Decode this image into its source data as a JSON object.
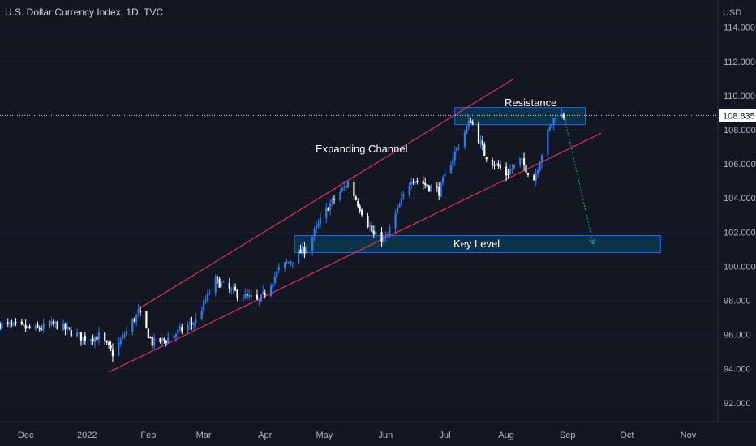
{
  "title": "U.S. Dollar Currency Index, 1D, TVC",
  "colors": {
    "background": "#131722",
    "up": "#3179f5",
    "down": "#ffffff",
    "channel": "#e0315a",
    "zone_fill": "#0c3a50",
    "zone_border": "#2962ff",
    "projection": "#26a69a",
    "axis_text": "#b2b5be",
    "price_label_bg": "#ffffff",
    "price_label_text": "#131722"
  },
  "annotations": {
    "expanding_channel": "Expanding Channel",
    "resistance": "Resistance",
    "key_level": "Key Level"
  },
  "chart_data": {
    "type": "candlestick",
    "title": "U.S. Dollar Currency Index, 1D, TVC",
    "y_axis_unit": "USD",
    "ylim": [
      90.9,
      115.6
    ],
    "y_ticks": [
      "114.000",
      "112.000",
      "110.000",
      "108.000",
      "106.000",
      "104.000",
      "102.000",
      "100.000",
      "98.000",
      "96.000",
      "94.000",
      "92.000"
    ],
    "x_ticks": [
      "Dec",
      "2022",
      "Feb",
      "Mar",
      "Apr",
      "May",
      "Jun",
      "Jul",
      "Aug",
      "Sep",
      "Oct",
      "Nov"
    ],
    "x_range": [
      "2021-11-18",
      "2022-11-16"
    ],
    "last_price": "108.835",
    "close_series": {
      "dates": [
        "2021-11-18",
        "2021-12-06",
        "2021-12-16",
        "2021-12-30",
        "2022-01-07",
        "2022-01-14",
        "2022-01-27",
        "2022-02-03",
        "2022-02-10",
        "2022-02-25",
        "2022-03-07",
        "2022-03-14",
        "2022-03-29",
        "2022-04-08",
        "2022-04-22",
        "2022-05-03",
        "2022-05-13",
        "2022-05-26",
        "2022-06-01",
        "2022-06-14",
        "2022-06-28",
        "2022-07-05",
        "2022-07-14",
        "2022-07-21",
        "2022-08-01",
        "2022-08-08",
        "2022-08-15",
        "2022-08-22",
        "2022-08-26",
        "2022-08-31"
      ],
      "values": [
        96.6,
        96.3,
        96.6,
        95.8,
        95.9,
        94.9,
        97.3,
        95.5,
        95.7,
        96.8,
        99.2,
        98.6,
        97.9,
        99.8,
        101.1,
        103.5,
        104.9,
        101.8,
        101.6,
        105.2,
        104.4,
        106.4,
        108.6,
        106.6,
        105.4,
        106.2,
        105.1,
        107.8,
        108.9,
        108.8
      ]
    },
    "channel": {
      "upper": {
        "from": [
          "2022-01-27",
          97.5
        ],
        "to": [
          "2022-08-05",
          111.0
        ]
      },
      "lower": {
        "from": [
          "2022-01-12",
          93.8
        ],
        "to": [
          "2022-09-18",
          107.8
        ]
      }
    },
    "resistance_zone": {
      "x": [
        "2022-07-06",
        "2022-09-10"
      ],
      "y": [
        108.3,
        109.3
      ]
    },
    "key_level_zone": {
      "x": [
        "2022-04-16",
        "2022-10-18"
      ],
      "y": [
        100.8,
        101.8
      ]
    },
    "projection": {
      "from": [
        "2022-08-31",
        108.4
      ],
      "to": [
        "2022-09-14",
        101.3
      ]
    }
  }
}
